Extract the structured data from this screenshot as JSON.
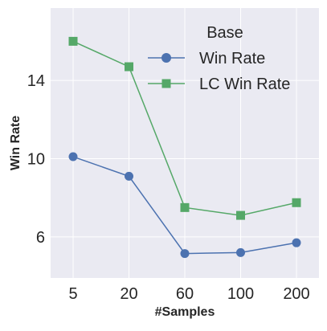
{
  "chart_data": {
    "type": "line",
    "title": "",
    "xlabel": "#Samples",
    "ylabel": "Win Rate",
    "categories": [
      "5",
      "20",
      "60",
      "100",
      "200"
    ],
    "yticks": [
      6,
      10,
      14
    ],
    "ylim": [
      3.9,
      17.7
    ],
    "grid": true,
    "legend": {
      "title": "Base",
      "placement": "top-right"
    },
    "series": [
      {
        "name": "Win Rate",
        "marker": "circle",
        "color": "#4c72b0",
        "values": [
          10.1,
          9.1,
          5.15,
          5.2,
          5.7
        ]
      },
      {
        "name": "LC Win Rate",
        "marker": "square",
        "color": "#55a868",
        "values": [
          16.0,
          14.7,
          7.5,
          7.1,
          7.75
        ]
      }
    ]
  }
}
